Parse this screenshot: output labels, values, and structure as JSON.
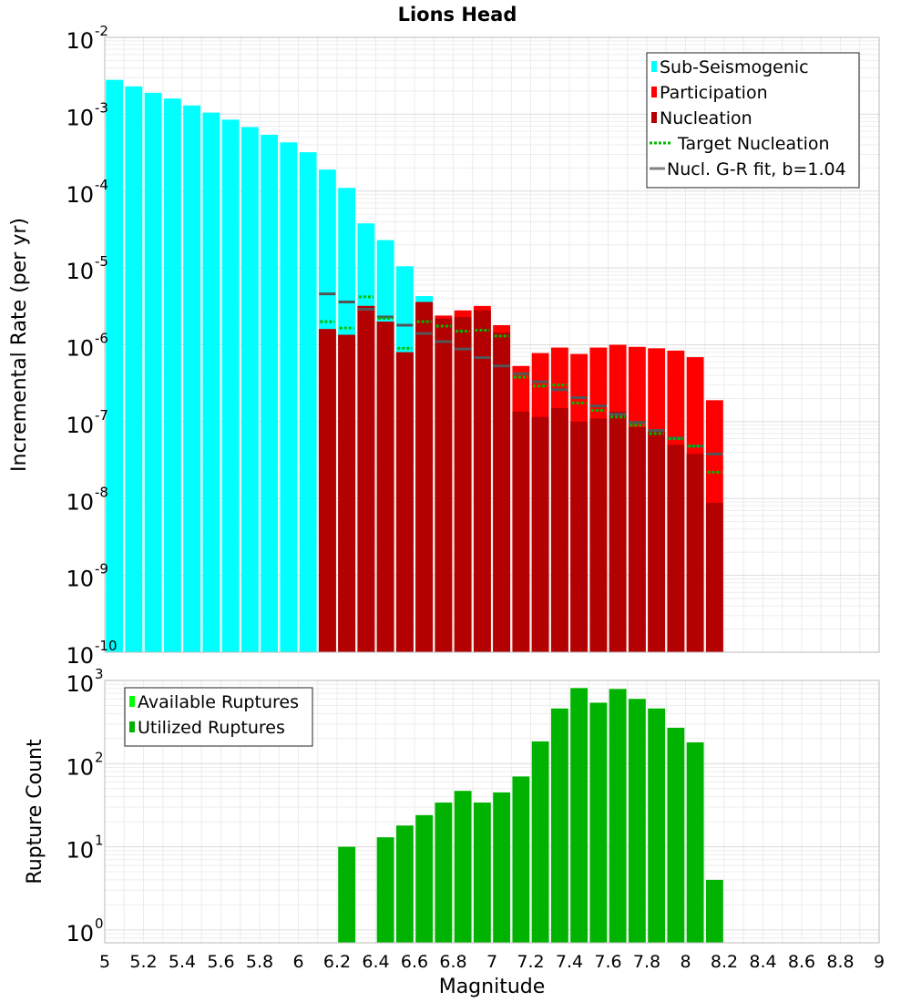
{
  "chart_data": [
    {
      "type": "bar",
      "title": "Lions Head",
      "xlabel": "",
      "ylabel": "Incremental Rate (per yr)",
      "xlim": [
        5,
        9
      ],
      "ylim": [
        1e-10,
        0.01
      ],
      "yscale": "log",
      "grid": true,
      "legend_position": "top-right",
      "bin_width": 0.1,
      "y_tick_labels": [
        {
          "base": "10",
          "exp": "-10"
        },
        {
          "base": "10",
          "exp": "-9"
        },
        {
          "base": "10",
          "exp": "-8"
        },
        {
          "base": "10",
          "exp": "-7"
        },
        {
          "base": "10",
          "exp": "-6"
        },
        {
          "base": "10",
          "exp": "-5"
        },
        {
          "base": "10",
          "exp": "-4"
        },
        {
          "base": "10",
          "exp": "-3"
        },
        {
          "base": "10",
          "exp": "-2"
        }
      ],
      "legend": [
        {
          "label": "Sub-Seismogenic",
          "style": "bar",
          "color": "#00ffff"
        },
        {
          "label": "Participation",
          "style": "bar",
          "color": "#ff0000"
        },
        {
          "label": "Nucleation",
          "style": "bar",
          "color": "#b30000"
        },
        {
          "label": "Target Nucleation",
          "style": "dotted",
          "color": "#00bb00"
        },
        {
          "label": "Nucl. G-R fit, b=1.04",
          "style": "line",
          "color": "#808080"
        }
      ],
      "series": [
        {
          "name": "Sub-Seismogenic",
          "color": "#00ffff",
          "x": [
            5.05,
            5.15,
            5.25,
            5.35,
            5.45,
            5.55,
            5.65,
            5.75,
            5.85,
            5.95,
            6.05,
            6.15,
            6.25,
            6.35,
            6.45,
            6.55,
            6.65
          ],
          "y": [
            0.0028,
            0.0023,
            0.0019,
            0.0016,
            0.0013,
            0.00105,
            0.00085,
            0.00068,
            0.00054,
            0.00043,
            0.00032,
            0.00019,
            0.00011,
            3.8e-05,
            2.3e-05,
            1.05e-05,
            4.3e-06
          ]
        },
        {
          "name": "Participation",
          "color": "#ff0000",
          "x": [
            6.15,
            6.25,
            6.35,
            6.45,
            6.55,
            6.65,
            6.75,
            6.85,
            6.95,
            7.05,
            7.15,
            7.25,
            7.35,
            7.45,
            7.55,
            7.65,
            7.75,
            7.85,
            7.95,
            8.05,
            8.15
          ],
          "y": [
            1.6e-06,
            1.35e-06,
            3.2e-06,
            2e-06,
            8e-07,
            3.6e-06,
            2.4e-06,
            2.8e-06,
            3.2e-06,
            1.8e-06,
            5.3e-07,
            7.8e-07,
            9.2e-07,
            7.6e-07,
            9.2e-07,
            1e-06,
            9.4e-07,
            9e-07,
            8.4e-07,
            6.9e-07,
            1.9e-07
          ]
        },
        {
          "name": "Nucleation",
          "color": "#b30000",
          "x": [
            6.15,
            6.25,
            6.35,
            6.45,
            6.55,
            6.65,
            6.75,
            6.85,
            6.95,
            7.05,
            7.15,
            7.25,
            7.35,
            7.45,
            7.55,
            7.65,
            7.75,
            7.85,
            7.95,
            8.05,
            8.15
          ],
          "y": [
            1.6e-06,
            1.35e-06,
            3.2e-06,
            2e-06,
            8e-07,
            3.6e-06,
            2.2e-06,
            2.3e-06,
            2.8e-06,
            1.45e-06,
            1.35e-07,
            1.15e-07,
            1.5e-07,
            1e-07,
            1.1e-07,
            1.35e-07,
            8.5e-08,
            7.5e-08,
            5e-08,
            3.8e-08,
            8.8e-09
          ]
        },
        {
          "name": "Target Nucleation",
          "color": "#00bb00",
          "x": [
            6.15,
            6.25,
            6.35,
            6.45,
            6.55,
            6.65,
            6.75,
            6.85,
            6.95,
            7.05,
            7.15,
            7.25,
            7.35,
            7.45,
            7.55,
            7.65,
            7.75,
            7.85,
            7.95,
            8.05,
            8.15
          ],
          "y": [
            2e-06,
            1.65e-06,
            4.2e-06,
            2.2e-06,
            9e-07,
            2e-06,
            1.75e-06,
            1.5e-06,
            1.55e-06,
            1.3e-06,
            3.8e-07,
            2.9e-07,
            3e-07,
            1.75e-07,
            1.4e-07,
            1.15e-07,
            9e-08,
            7e-08,
            6e-08,
            4.8e-08,
            2.2e-08
          ]
        },
        {
          "name": "Nucl. G-R fit, b=1.04",
          "color": "#555555",
          "x": [
            6.15,
            6.25,
            6.35,
            6.45,
            6.55,
            6.65,
            6.75,
            6.85,
            6.95,
            7.05,
            7.15,
            7.25,
            7.35,
            7.45,
            7.55,
            7.65,
            7.75,
            7.85,
            7.95,
            8.05,
            8.15
          ],
          "y": [
            4.6e-06,
            3.6e-06,
            2.9e-06,
            2.3e-06,
            1.8e-06,
            1.4e-06,
            1.1e-06,
            8.8e-07,
            6.8e-07,
            5.3e-07,
            4.2e-07,
            3.3e-07,
            2.6e-07,
            2.05e-07,
            1.6e-07,
            1.25e-07,
            9.8e-08,
            7.7e-08,
            6.1e-08,
            4.8e-08,
            3.8e-08
          ]
        }
      ]
    },
    {
      "type": "bar",
      "title": "",
      "xlabel": "Magnitude",
      "ylabel": "Rupture Count",
      "xlim": [
        5,
        9
      ],
      "ylim": [
        0.7,
        1000
      ],
      "yscale": "log",
      "grid": true,
      "legend_position": "top-left",
      "bin_width": 0.1,
      "x_ticks": [
        "5",
        "5.2",
        "5.4",
        "5.6",
        "5.8",
        "6",
        "6.2",
        "6.4",
        "6.6",
        "6.8",
        "7",
        "7.2",
        "7.4",
        "7.6",
        "7.8",
        "8",
        "8.2",
        "8.4",
        "8.6",
        "8.8",
        "9"
      ],
      "y_tick_labels": [
        {
          "base": "10",
          "exp": "0"
        },
        {
          "base": "10",
          "exp": "1"
        },
        {
          "base": "10",
          "exp": "2"
        },
        {
          "base": "10",
          "exp": "3"
        }
      ],
      "legend": [
        {
          "label": "Available Ruptures",
          "style": "bar",
          "color": "#00ff00"
        },
        {
          "label": "Utilized Ruptures",
          "style": "bar",
          "color": "#00b300"
        }
      ],
      "series": [
        {
          "name": "Available Ruptures",
          "color": "#00ff00",
          "x": [
            6.25,
            6.45,
            6.55,
            6.65,
            6.75,
            6.85,
            6.95,
            7.05,
            7.15,
            7.25,
            7.35,
            7.45,
            7.55,
            7.65,
            7.75,
            7.85,
            7.95,
            8.05,
            8.15
          ],
          "y": [
            10,
            13,
            18,
            24,
            34,
            47,
            34,
            45,
            70,
            185,
            460,
            810,
            540,
            790,
            600,
            460,
            270,
            180,
            4
          ]
        },
        {
          "name": "Utilized Ruptures",
          "color": "#00b300",
          "x": [
            6.25,
            6.45,
            6.55,
            6.65,
            6.75,
            6.85,
            6.95,
            7.05,
            7.15,
            7.25,
            7.35,
            7.45,
            7.55,
            7.65,
            7.75,
            7.85,
            7.95,
            8.05,
            8.15
          ],
          "y": [
            10,
            13,
            18,
            24,
            34,
            47,
            34,
            45,
            70,
            185,
            460,
            810,
            540,
            790,
            600,
            460,
            270,
            180,
            4
          ]
        }
      ]
    }
  ]
}
